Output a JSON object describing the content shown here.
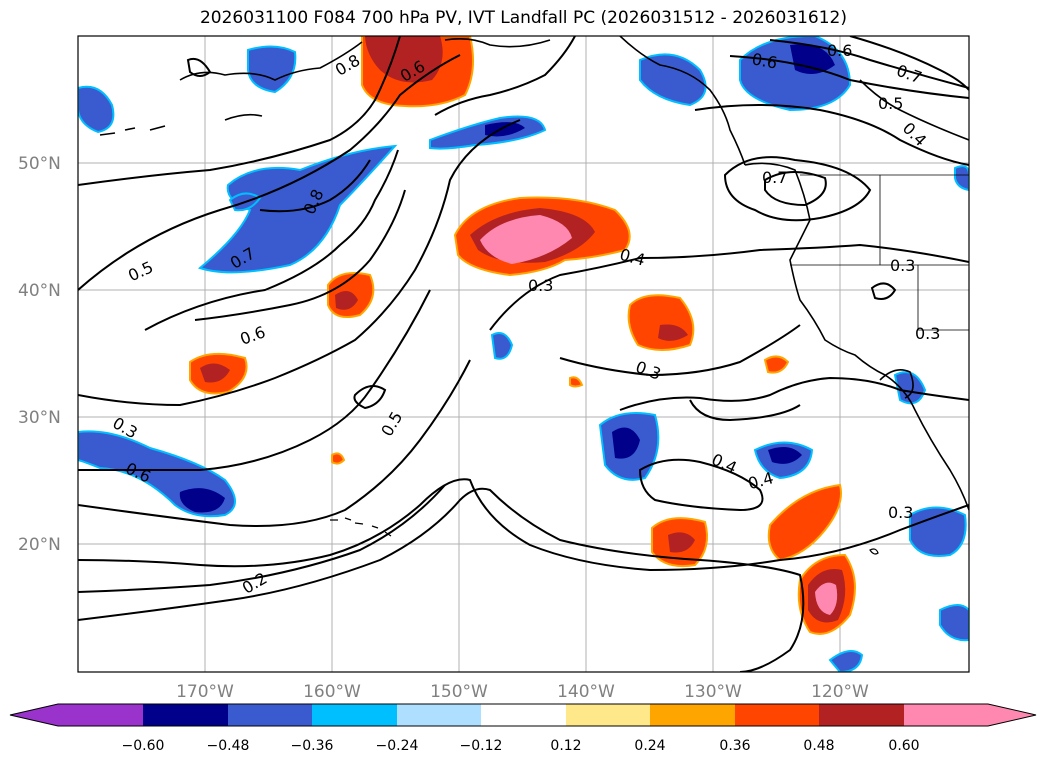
{
  "title": "2026031100 F084 700 hPa PV, IVT Landfall PC (2026031512 - 2026031612)",
  "axes": {
    "lat_labels": [
      "50°N",
      "40°N",
      "30°N",
      "20°N"
    ],
    "lon_labels": [
      "170°W",
      "160°W",
      "150°W",
      "140°W",
      "130°W",
      "120°W"
    ]
  },
  "colors": {
    "c_neg_extend": "#9933cc",
    "c_m060": "#00008b",
    "c_m048": "#3a5bd0",
    "c_m036": "#00bfff",
    "c_m024": "#afdfff",
    "c_m012": "#ffffff",
    "c_p012": "#ffe88a",
    "c_p024": "#ffa500",
    "c_p036": "#ff4500",
    "c_p048": "#b22222",
    "c_pos_extend": "#ff88b0"
  },
  "colorbar": {
    "ticks": [
      "−0.60",
      "−0.48",
      "−0.36",
      "−0.24",
      "−0.12",
      "0.12",
      "0.24",
      "0.36",
      "0.48",
      "0.60"
    ]
  },
  "contour_labels": [
    "0.6",
    "0.7",
    "0.5",
    "0.4",
    "0.6",
    "0.7",
    "0.8",
    "0.6",
    "0.8",
    "0.7",
    "0.5",
    "0.6",
    "0.4",
    "0.3",
    "0.3",
    "0.3",
    "0.3",
    "0.5",
    "0.3",
    "0.4",
    "0.4",
    "0.6",
    "0.3",
    "0.2"
  ]
}
